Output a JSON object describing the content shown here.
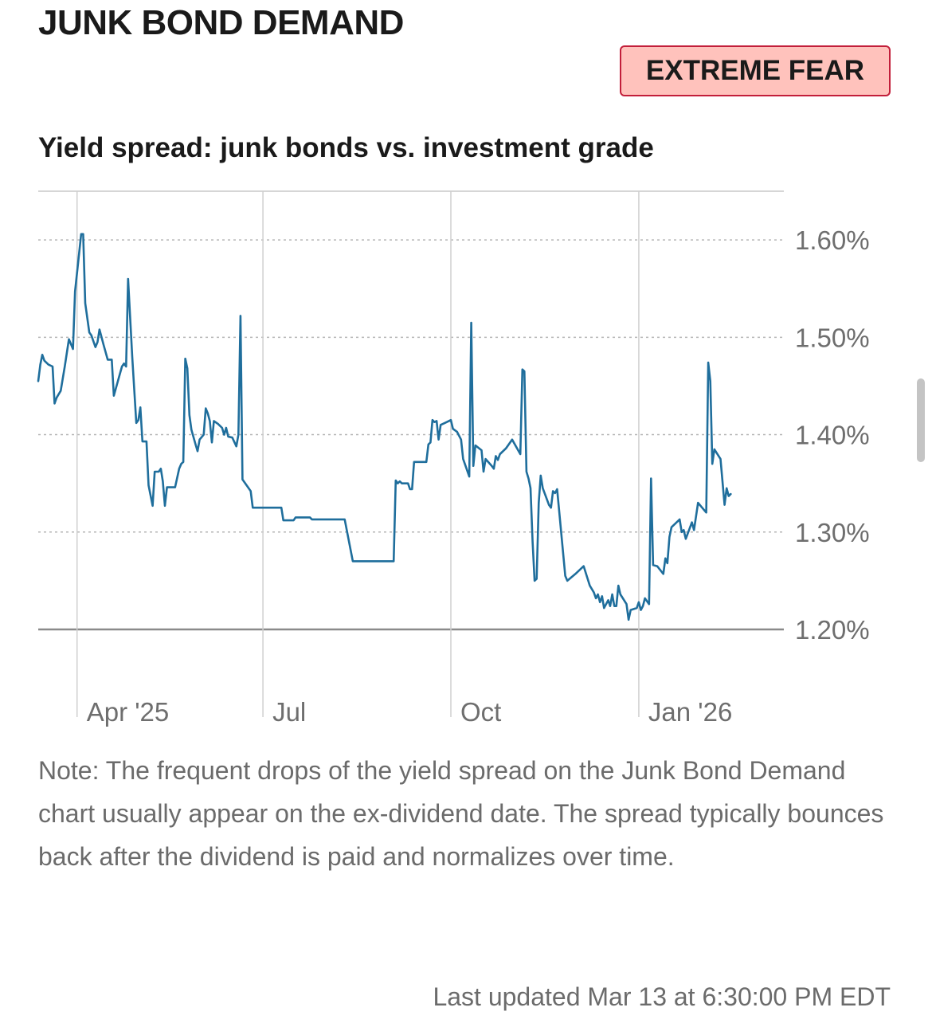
{
  "header": {
    "title": "JUNK BOND DEMAND",
    "sentiment_badge": "EXTREME FEAR",
    "badge_bg": "#ffc2bc",
    "badge_border": "#c21e3a"
  },
  "chart_title": "Yield spread: junk bonds vs. investment grade",
  "chart_data": {
    "type": "line",
    "title": "Yield spread: junk bonds vs. investment grade",
    "xlabel": "",
    "ylabel": "",
    "line_color": "#1f6e9c",
    "xlim": [
      "2025-03-13",
      "2026-03-13"
    ],
    "ylim": [
      1.155,
      1.65
    ],
    "y_ticks": [
      1.6,
      1.5,
      1.4,
      1.3,
      1.2
    ],
    "y_tick_labels": [
      "1.60%",
      "1.50%",
      "1.40%",
      "1.30%",
      "1.20%"
    ],
    "x_ticks": [
      "2025-04-01",
      "2025-07-01",
      "2025-10-01",
      "2026-01-01"
    ],
    "x_tick_labels": [
      "Apr '25",
      "Jul",
      "Oct",
      "Jan '26"
    ],
    "grid": "dotted horizontal",
    "series": [
      {
        "name": "",
        "points": [
          [
            "2025-03-13",
            1.455
          ],
          [
            "2025-03-14",
            1.472
          ],
          [
            "2025-03-15",
            1.482
          ],
          [
            "2025-03-16",
            1.476
          ],
          [
            "2025-03-18",
            1.472
          ],
          [
            "2025-03-20",
            1.47
          ],
          [
            "2025-03-21",
            1.432
          ],
          [
            "2025-03-22",
            1.438
          ],
          [
            "2025-03-24",
            1.445
          ],
          [
            "2025-03-26",
            1.47
          ],
          [
            "2025-03-28",
            1.498
          ],
          [
            "2025-03-30",
            1.488
          ],
          [
            "2025-03-31",
            1.547
          ],
          [
            "2025-04-03",
            1.606
          ],
          [
            "2025-04-04",
            1.606
          ],
          [
            "2025-04-05",
            1.535
          ],
          [
            "2025-04-07",
            1.505
          ],
          [
            "2025-04-08",
            1.502
          ],
          [
            "2025-04-10",
            1.49
          ],
          [
            "2025-04-11",
            1.495
          ],
          [
            "2025-04-12",
            1.508
          ],
          [
            "2025-04-14",
            1.492
          ],
          [
            "2025-04-16",
            1.477
          ],
          [
            "2025-04-18",
            1.477
          ],
          [
            "2025-04-19",
            1.44
          ],
          [
            "2025-04-21",
            1.455
          ],
          [
            "2025-04-23",
            1.47
          ],
          [
            "2025-04-24",
            1.473
          ],
          [
            "2025-04-25",
            1.47
          ],
          [
            "2025-04-26",
            1.56
          ],
          [
            "2025-04-28",
            1.48
          ],
          [
            "2025-04-30",
            1.412
          ],
          [
            "2025-05-01",
            1.415
          ],
          [
            "2025-05-02",
            1.428
          ],
          [
            "2025-05-03",
            1.393
          ],
          [
            "2025-05-05",
            1.393
          ],
          [
            "2025-05-06",
            1.348
          ],
          [
            "2025-05-08",
            1.327
          ],
          [
            "2025-05-09",
            1.362
          ],
          [
            "2025-05-11",
            1.362
          ],
          [
            "2025-05-12",
            1.365
          ],
          [
            "2025-05-13",
            1.352
          ],
          [
            "2025-05-14",
            1.327
          ],
          [
            "2025-05-15",
            1.346
          ],
          [
            "2025-05-17",
            1.346
          ],
          [
            "2025-05-19",
            1.346
          ],
          [
            "2025-05-21",
            1.365
          ],
          [
            "2025-05-22",
            1.37
          ],
          [
            "2025-05-23",
            1.372
          ],
          [
            "2025-05-24",
            1.478
          ],
          [
            "2025-05-25",
            1.468
          ],
          [
            "2025-05-26",
            1.42
          ],
          [
            "2025-05-27",
            1.405
          ],
          [
            "2025-05-29",
            1.39
          ],
          [
            "2025-05-30",
            1.383
          ],
          [
            "2025-05-31",
            1.395
          ],
          [
            "2025-06-02",
            1.4
          ],
          [
            "2025-06-03",
            1.427
          ],
          [
            "2025-06-04",
            1.422
          ],
          [
            "2025-06-05",
            1.414
          ],
          [
            "2025-06-06",
            1.392
          ],
          [
            "2025-06-07",
            1.414
          ],
          [
            "2025-06-09",
            1.411
          ],
          [
            "2025-06-11",
            1.407
          ],
          [
            "2025-06-12",
            1.4
          ],
          [
            "2025-06-13",
            1.407
          ],
          [
            "2025-06-14",
            1.398
          ],
          [
            "2025-06-16",
            1.397
          ],
          [
            "2025-06-18",
            1.388
          ],
          [
            "2025-06-19",
            1.4
          ],
          [
            "2025-06-20",
            1.522
          ],
          [
            "2025-06-21",
            1.354
          ],
          [
            "2025-06-23",
            1.348
          ],
          [
            "2025-06-25",
            1.342
          ],
          [
            "2025-06-26",
            1.325
          ],
          [
            "2025-07-10",
            1.325
          ],
          [
            "2025-07-11",
            1.312
          ],
          [
            "2025-07-16",
            1.312
          ],
          [
            "2025-07-17",
            1.315
          ],
          [
            "2025-07-24",
            1.315
          ],
          [
            "2025-07-25",
            1.313
          ],
          [
            "2025-08-10",
            1.313
          ],
          [
            "2025-08-14",
            1.27
          ],
          [
            "2025-09-03",
            1.27
          ],
          [
            "2025-09-04",
            1.353
          ],
          [
            "2025-09-05",
            1.35
          ],
          [
            "2025-09-06",
            1.352
          ],
          [
            "2025-09-07",
            1.35
          ],
          [
            "2025-09-10",
            1.35
          ],
          [
            "2025-09-11",
            1.344
          ],
          [
            "2025-09-12",
            1.344
          ],
          [
            "2025-09-13",
            1.372
          ],
          [
            "2025-09-19",
            1.372
          ],
          [
            "2025-09-20",
            1.39
          ],
          [
            "2025-09-21",
            1.392
          ],
          [
            "2025-09-22",
            1.415
          ],
          [
            "2025-09-23",
            1.413
          ],
          [
            "2025-09-24",
            1.414
          ],
          [
            "2025-09-25",
            1.395
          ],
          [
            "2025-09-26",
            1.41
          ],
          [
            "2025-09-28",
            1.412
          ],
          [
            "2025-09-29",
            1.413
          ],
          [
            "2025-10-01",
            1.415
          ],
          [
            "2025-10-02",
            1.406
          ],
          [
            "2025-10-04",
            1.403
          ],
          [
            "2025-10-06",
            1.395
          ],
          [
            "2025-10-07",
            1.375
          ],
          [
            "2025-10-10",
            1.357
          ],
          [
            "2025-10-11",
            1.515
          ],
          [
            "2025-10-12",
            1.368
          ],
          [
            "2025-10-13",
            1.389
          ],
          [
            "2025-10-16",
            1.384
          ],
          [
            "2025-10-17",
            1.362
          ],
          [
            "2025-10-18",
            1.375
          ],
          [
            "2025-10-21",
            1.368
          ],
          [
            "2025-10-22",
            1.365
          ],
          [
            "2025-10-23",
            1.378
          ],
          [
            "2025-10-24",
            1.374
          ],
          [
            "2025-10-25",
            1.38
          ],
          [
            "2025-10-28",
            1.386
          ],
          [
            "2025-10-31",
            1.395
          ],
          [
            "2025-11-04",
            1.38
          ],
          [
            "2025-11-05",
            1.467
          ],
          [
            "2025-11-06",
            1.465
          ],
          [
            "2025-11-07",
            1.362
          ],
          [
            "2025-11-08",
            1.355
          ],
          [
            "2025-11-09",
            1.345
          ],
          [
            "2025-11-10",
            1.29
          ],
          [
            "2025-11-11",
            1.25
          ],
          [
            "2025-11-12",
            1.252
          ],
          [
            "2025-11-13",
            1.33
          ],
          [
            "2025-11-14",
            1.358
          ],
          [
            "2025-11-15",
            1.345
          ],
          [
            "2025-11-18",
            1.328
          ],
          [
            "2025-11-19",
            1.325
          ],
          [
            "2025-11-20",
            1.342
          ],
          [
            "2025-11-21",
            1.34
          ],
          [
            "2025-11-22",
            1.344
          ],
          [
            "2025-11-26",
            1.255
          ],
          [
            "2025-11-27",
            1.25
          ],
          [
            "2025-12-01",
            1.257
          ],
          [
            "2025-12-05",
            1.265
          ],
          [
            "2025-12-08",
            1.245
          ],
          [
            "2025-12-10",
            1.238
          ],
          [
            "2025-12-11",
            1.232
          ],
          [
            "2025-12-12",
            1.236
          ],
          [
            "2025-12-13",
            1.228
          ],
          [
            "2025-12-14",
            1.234
          ],
          [
            "2025-12-15",
            1.222
          ],
          [
            "2025-12-17",
            1.23
          ],
          [
            "2025-12-18",
            1.224
          ],
          [
            "2025-12-19",
            1.236
          ],
          [
            "2025-12-20",
            1.224
          ],
          [
            "2025-12-21",
            1.224
          ],
          [
            "2025-12-22",
            1.245
          ],
          [
            "2025-12-23",
            1.236
          ],
          [
            "2025-12-26",
            1.226
          ],
          [
            "2025-12-27",
            1.21
          ],
          [
            "2025-12-28",
            1.22
          ],
          [
            "2025-12-31",
            1.222
          ],
          [
            "2026-01-01",
            1.228
          ],
          [
            "2026-01-02",
            1.22
          ],
          [
            "2026-01-03",
            1.224
          ],
          [
            "2026-01-04",
            1.232
          ],
          [
            "2026-01-06",
            1.226
          ],
          [
            "2026-01-07",
            1.355
          ],
          [
            "2026-01-08",
            1.266
          ],
          [
            "2026-01-10",
            1.265
          ],
          [
            "2026-01-13",
            1.257
          ],
          [
            "2026-01-14",
            1.273
          ],
          [
            "2026-01-15",
            1.268
          ],
          [
            "2026-01-16",
            1.295
          ],
          [
            "2026-01-17",
            1.305
          ],
          [
            "2026-01-21",
            1.313
          ],
          [
            "2026-01-22",
            1.3
          ],
          [
            "2026-01-23",
            1.302
          ],
          [
            "2026-01-24",
            1.293
          ],
          [
            "2026-01-27",
            1.31
          ],
          [
            "2026-01-28",
            1.302
          ],
          [
            "2026-01-30",
            1.33
          ],
          [
            "2026-02-03",
            1.32
          ],
          [
            "2026-02-04",
            1.474
          ],
          [
            "2026-02-05",
            1.455
          ],
          [
            "2026-02-06",
            1.37
          ],
          [
            "2026-02-07",
            1.385
          ],
          [
            "2026-02-10",
            1.375
          ],
          [
            "2026-02-12",
            1.328
          ],
          [
            "2026-02-13",
            1.345
          ],
          [
            "2026-02-14",
            1.337
          ],
          [
            "2026-02-15",
            1.339
          ]
        ]
      }
    ]
  },
  "note": "Note: The frequent drops of the yield spread on the Junk Bond Demand chart usually appear on the ex-dividend date. The spread typically bounces back after the dividend is paid and normalizes over time.",
  "last_updated": "Last updated Mar 13 at 6:30:00 PM EDT"
}
